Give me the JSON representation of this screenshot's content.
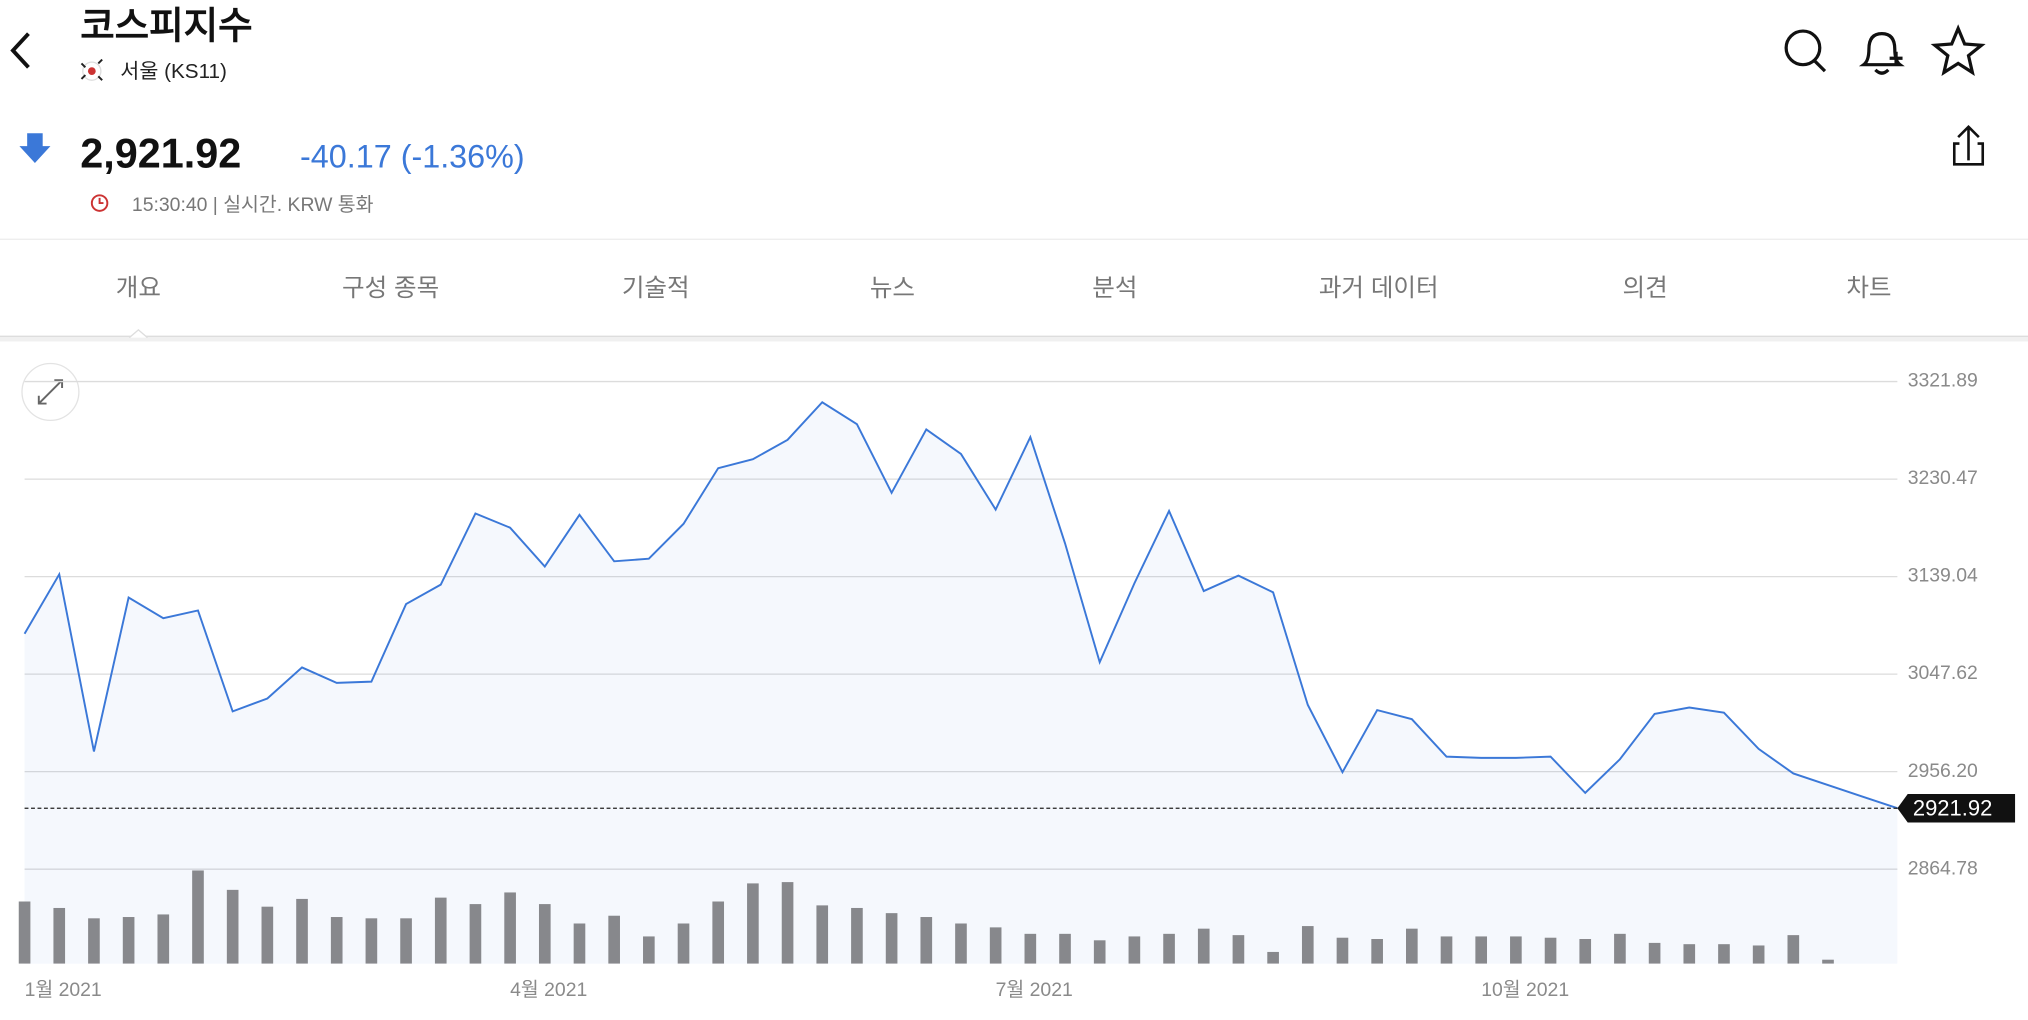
{
  "header": {
    "title": "코스피지수",
    "exchange": "서울 (KS11)",
    "price": "2,921.92",
    "change": "-40.17 (-1.36%)",
    "time": "15:30:40 | 실시간. KRW 통화"
  },
  "tabs": [
    "개요",
    "구성 종목",
    "기술적",
    "뉴스",
    "분석",
    "과거 데이터",
    "의견",
    "차트"
  ],
  "active_tab": 0,
  "chart_data": {
    "type": "line",
    "categories": [
      "1월 2021",
      null,
      null,
      null,
      null,
      null,
      null,
      null,
      null,
      null,
      null,
      null,
      null,
      null,
      "4월 2021",
      null,
      null,
      null,
      null,
      null,
      null,
      null,
      null,
      null,
      null,
      null,
      null,
      null,
      "7월 2021",
      null,
      null,
      null,
      null,
      null,
      null,
      null,
      null,
      null,
      null,
      null,
      null,
      null,
      "10월 2021",
      null,
      null,
      null,
      null,
      null,
      null,
      null,
      null,
      null,
      null,
      null,
      null
    ],
    "series": [
      {
        "name": "KOSPI",
        "color": "#3b78d8",
        "values": [
          3085.5,
          3141.2,
          2975.1,
          3119.4,
          3100.0,
          3107.3,
          3012.7,
          3024.8,
          3053.9,
          3039.4,
          3040.6,
          3113.3,
          3131.5,
          3198.2,
          3184.9,
          3148.5,
          3197.0,
          3153.4,
          3155.8,
          3188.5,
          3240.7,
          3249.1,
          3267.3,
          3302.5,
          3281.9,
          3217.6,
          3277.0,
          3254.0,
          3201.9,
          3269.8,
          3170.3,
          3058.8,
          3132.7,
          3200.6,
          3125.5,
          3140.0,
          3124.3,
          3018.8,
          2955.7,
          3013.9,
          3005.4,
          2970.3,
          2969.1,
          2969.1,
          2970.3,
          2936.3,
          2967.8,
          3010.3,
          3016.3,
          3011.5,
          2977.5,
          2954.5,
          2943.6,
          2932.7,
          2921.92
        ]
      },
      {
        "name": "Volume",
        "color": "#87888c",
        "values": [
          48,
          43,
          35,
          36,
          38,
          72,
          57,
          44,
          50,
          36,
          35,
          35,
          51,
          46,
          55,
          46,
          31,
          37,
          21,
          31,
          48,
          62,
          63,
          45,
          43,
          39,
          36,
          31,
          28,
          23,
          23,
          18,
          21,
          23,
          27,
          22,
          9,
          29,
          20,
          19,
          27,
          21,
          21,
          21,
          20,
          19,
          23,
          16,
          15,
          15,
          14,
          22,
          3,
          null,
          null
        ]
      }
    ],
    "ylim": [
      2864.78,
      3321.89
    ],
    "yticks": [
      {
        "value": 2864.78,
        "label": "2864.78"
      },
      {
        "value": 2956.2,
        "label": "2956.20"
      },
      {
        "value": 3047.62,
        "label": "3047.62"
      },
      {
        "value": 3139.04,
        "label": "3139.04"
      },
      {
        "value": 3230.47,
        "label": "3230.47"
      },
      {
        "value": 3321.89,
        "label": "3321.89"
      }
    ],
    "grid": true
  }
}
